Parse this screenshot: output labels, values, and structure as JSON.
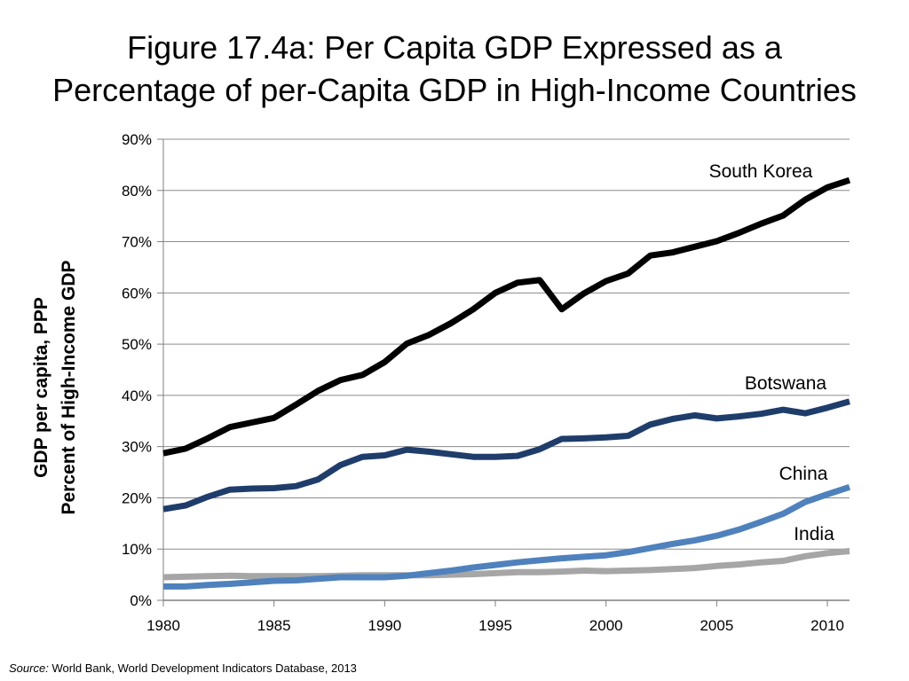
{
  "title_line1": "Figure 17.4a: Per Capita GDP Expressed as a",
  "title_line2": "Percentage of per-Capita GDP in High-Income Countries",
  "source_label": "Source:",
  "source_text": "World Bank, World Development Indicators Database, 2013",
  "colors": {
    "south_korea": "#000000",
    "botswana": "#1f3d6b",
    "china": "#4f81bd",
    "india": "#a6a6a6",
    "grid": "#8c8c8c",
    "axis": "#7f7f7f"
  },
  "chart_data": {
    "type": "line",
    "title": "Figure 17.4a: Per Capita GDP Expressed as a Percentage of per-Capita GDP in High-Income Countries",
    "xlabel": "",
    "ylabel_line1": "GDP per capita, PPP",
    "ylabel_line2": "Percent of High-Income GDP",
    "xlim": [
      1980,
      2011
    ],
    "ylim": [
      0,
      90
    ],
    "x_ticks": [
      "1980",
      "1985",
      "1990",
      "1995",
      "2000",
      "2005",
      "2010"
    ],
    "y_ticks": [
      "0%",
      "10%",
      "20%",
      "30%",
      "40%",
      "50%",
      "60%",
      "70%",
      "80%",
      "90%"
    ],
    "grid": true,
    "x": [
      1980,
      1981,
      1982,
      1983,
      1984,
      1985,
      1986,
      1987,
      1988,
      1989,
      1990,
      1991,
      1992,
      1993,
      1994,
      1995,
      1996,
      1997,
      1998,
      1999,
      2000,
      2001,
      2002,
      2003,
      2004,
      2005,
      2006,
      2007,
      2008,
      2009,
      2010,
      2011
    ],
    "series": [
      {
        "name": "South Korea",
        "color_key": "south_korea",
        "values": [
          28.7,
          29.6,
          31.6,
          33.8,
          34.7,
          35.6,
          38.2,
          40.9,
          43.0,
          44.0,
          46.5,
          50.1,
          51.8,
          54.1,
          56.8,
          60.0,
          62.0,
          62.5,
          56.8,
          59.9,
          62.3,
          63.8,
          67.3,
          67.9,
          69.0,
          70.1,
          71.7,
          73.5,
          75.1,
          78.2,
          80.6,
          82.0
        ]
      },
      {
        "name": "Botswana",
        "color_key": "botswana",
        "values": [
          17.8,
          18.5,
          20.2,
          21.6,
          21.8,
          21.9,
          22.3,
          23.6,
          26.4,
          28.0,
          28.3,
          29.4,
          29.0,
          28.5,
          28.0,
          28.0,
          28.2,
          29.5,
          31.5,
          31.6,
          31.8,
          32.1,
          34.3,
          35.4,
          36.1,
          35.5,
          35.9,
          36.4,
          37.2,
          36.5,
          37.6,
          38.8
        ]
      },
      {
        "name": "China",
        "color_key": "china",
        "values": [
          2.7,
          2.7,
          3.0,
          3.2,
          3.5,
          3.8,
          3.9,
          4.2,
          4.5,
          4.5,
          4.5,
          4.8,
          5.3,
          5.8,
          6.4,
          6.9,
          7.4,
          7.8,
          8.2,
          8.5,
          8.8,
          9.4,
          10.2,
          11.0,
          11.7,
          12.6,
          13.8,
          15.3,
          16.9,
          19.2,
          20.7,
          22.1
        ]
      },
      {
        "name": "India",
        "color_key": "india",
        "values": [
          4.5,
          4.6,
          4.7,
          4.8,
          4.7,
          4.7,
          4.7,
          4.7,
          4.8,
          4.9,
          4.9,
          4.9,
          4.9,
          5.0,
          5.1,
          5.3,
          5.5,
          5.5,
          5.6,
          5.8,
          5.7,
          5.8,
          5.9,
          6.1,
          6.3,
          6.7,
          7.0,
          7.4,
          7.7,
          8.6,
          9.2,
          9.6
        ]
      }
    ],
    "legend": "inline labels near line ends"
  }
}
